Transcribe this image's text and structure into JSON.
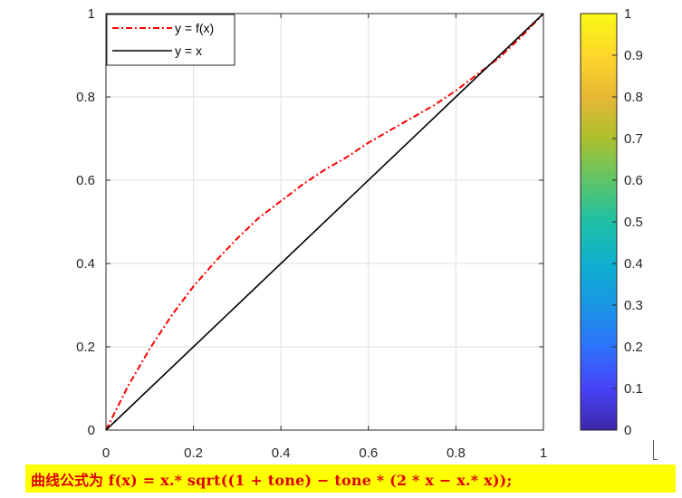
{
  "chart_data": {
    "type": "line",
    "xlim": [
      0,
      1
    ],
    "ylim": [
      0,
      1
    ],
    "x_ticks": [
      "0",
      "0.2",
      "0.4",
      "0.6",
      "0.8",
      "1"
    ],
    "y_ticks": [
      "0",
      "0.2",
      "0.4",
      "0.6",
      "0.8",
      "1"
    ],
    "grid": true,
    "legend_placement": "top-left",
    "series": [
      {
        "name": "y = f(x)",
        "color": "#ff0000",
        "style": "dash-dot",
        "x": [
          0,
          0.05,
          0.1,
          0.15,
          0.2,
          0.25,
          0.3,
          0.35,
          0.4,
          0.45,
          0.5,
          0.55,
          0.6,
          0.65,
          0.7,
          0.75,
          0.8,
          0.85,
          0.9,
          0.95,
          1
        ],
        "y": [
          0,
          0.105,
          0.195,
          0.275,
          0.345,
          0.405,
          0.46,
          0.51,
          0.55,
          0.59,
          0.625,
          0.655,
          0.69,
          0.72,
          0.75,
          0.78,
          0.815,
          0.855,
          0.895,
          0.945,
          1
        ]
      },
      {
        "name": "y = x",
        "color": "#000000",
        "style": "solid",
        "x": [
          0,
          1
        ],
        "y": [
          0,
          1
        ]
      }
    ],
    "colorbar": {
      "ticks": [
        "0",
        "0.1",
        "0.2",
        "0.3",
        "0.4",
        "0.5",
        "0.6",
        "0.7",
        "0.8",
        "0.9",
        "1"
      ],
      "colormap": "parula",
      "stops": [
        "#3e26a8",
        "#4743f8",
        "#2e72fb",
        "#1a96e4",
        "#0fb0cf",
        "#1fbfa6",
        "#5ec566",
        "#acc02e",
        "#e7b735",
        "#fdd62a",
        "#f9fb15"
      ]
    }
  },
  "caption": {
    "prefix": "曲线公式为 ",
    "formula": "f(x)  =  x.* sqrt((1 + tone) − tone * (2 * x − x.* x));",
    "background": "#ffff00",
    "color": "#e00000"
  }
}
